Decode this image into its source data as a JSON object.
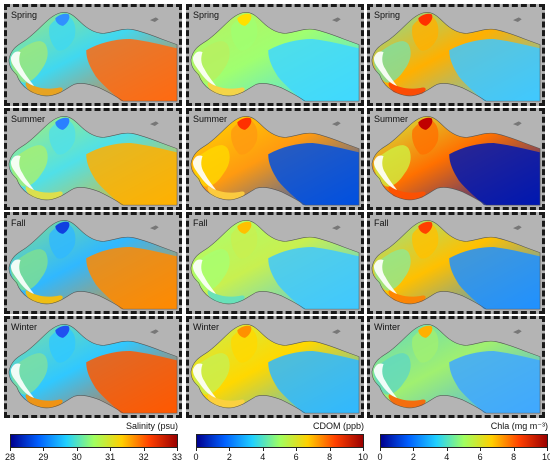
{
  "columns": [
    {
      "key": "salinity",
      "colorbar_title": "Salinity (psu)",
      "ticks": [
        "28",
        "29",
        "30",
        "31",
        "32",
        "33"
      ],
      "colormap": [
        "#00008f",
        "#0060ff",
        "#20d0ff",
        "#a0ff60",
        "#ffd000",
        "#ff4000",
        "#9a0000"
      ]
    },
    {
      "key": "cdom",
      "colorbar_title": "CDOM (ppb)",
      "ticks": [
        "0",
        "2",
        "4",
        "6",
        "8",
        "10"
      ],
      "colormap": [
        "#00008f",
        "#0060ff",
        "#20d0ff",
        "#a0ff60",
        "#ffd000",
        "#ff4000",
        "#9a0000"
      ]
    },
    {
      "key": "chla",
      "colorbar_title": "Chla (mg m⁻³)",
      "ticks": [
        "0",
        "2",
        "4",
        "6",
        "8",
        "10"
      ],
      "colormap": [
        "#00008f",
        "#0060ff",
        "#20d0ff",
        "#a0ff60",
        "#ffd000",
        "#ff4000",
        "#9a0000"
      ]
    }
  ],
  "seasons": [
    "Spring",
    "Summer",
    "Fall",
    "Winter"
  ],
  "panel_colors": {
    "salinity": [
      {
        "west": "#9ee87a",
        "gulf": "#40d8f0",
        "bayhead": "#3090ff",
        "east": "#ff6a10",
        "edge": "#f5a010"
      },
      {
        "west": "#a8f070",
        "gulf": "#50e0e8",
        "bayhead": "#2a80ff",
        "east": "#ffb000",
        "edge": "#e8e040"
      },
      {
        "west": "#7fe090",
        "gulf": "#30b8ff",
        "bayhead": "#1040e0",
        "east": "#ff8a00",
        "edge": "#ffc000"
      },
      {
        "west": "#7ee0a0",
        "gulf": "#30c8ff",
        "bayhead": "#2050f0",
        "east": "#ff5800",
        "edge": "#ff9000"
      }
    ],
    "cdom": [
      {
        "west": "#b8f060",
        "gulf": "#a0ff70",
        "bayhead": "#ffe000",
        "east": "#40d8ff",
        "edge": "#ffd040"
      },
      {
        "west": "#ffd800",
        "gulf": "#ff9a10",
        "bayhead": "#ff3000",
        "east": "#0050e0",
        "edge": "#ffd040"
      },
      {
        "west": "#a8ff70",
        "gulf": "#c8f050",
        "bayhead": "#ffc000",
        "east": "#40c8ff",
        "edge": "#60e0c0"
      },
      {
        "west": "#c8f050",
        "gulf": "#ffd800",
        "bayhead": "#ff9000",
        "east": "#30b8ff",
        "edge": "#ffd040"
      }
    ],
    "chla": [
      {
        "west": "#80e0a0",
        "gulf": "#ffb000",
        "bayhead": "#ff3000",
        "east": "#40c8ff",
        "edge": "#ff4000"
      },
      {
        "west": "#d0f040",
        "gulf": "#ff7000",
        "bayhead": "#c00000",
        "east": "#0018b0",
        "edge": "#ff5000"
      },
      {
        "west": "#90e890",
        "gulf": "#ffc000",
        "bayhead": "#ff4000",
        "east": "#2090ff",
        "edge": "#ff8000"
      },
      {
        "west": "#60d8c0",
        "gulf": "#a0f070",
        "bayhead": "#ffb000",
        "east": "#40a8ff",
        "edge": "#ff6000"
      }
    ]
  }
}
